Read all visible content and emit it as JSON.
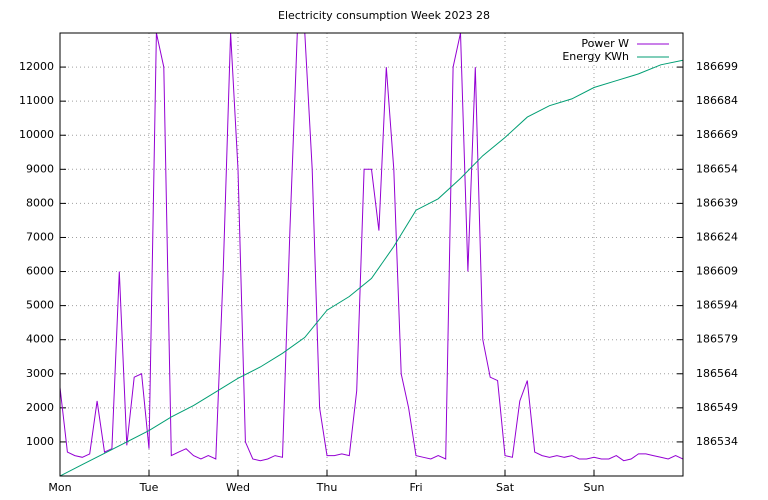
{
  "chart_data": {
    "type": "line",
    "title": "Electricity consumption Week 2023 28",
    "xlim": [
      0,
      168
    ],
    "xticks": [
      {
        "value": 0,
        "label": "Mon"
      },
      {
        "value": 24,
        "label": "Tue"
      },
      {
        "value": 48,
        "label": "Wed"
      },
      {
        "value": 72,
        "label": "Thu"
      },
      {
        "value": 96,
        "label": "Fri"
      },
      {
        "value": 120,
        "label": "Sat"
      },
      {
        "value": 144,
        "label": "Sun"
      }
    ],
    "ylim": [
      0,
      13000
    ],
    "yticks": [
      1000,
      2000,
      3000,
      4000,
      5000,
      6000,
      7000,
      8000,
      9000,
      10000,
      11000,
      12000
    ],
    "y2lim": [
      186519,
      186714
    ],
    "y2ticks": [
      186534,
      186549,
      186564,
      186579,
      186594,
      186609,
      186624,
      186639,
      186654,
      186669,
      186684,
      186699
    ],
    "grid": true,
    "legend": "top-right",
    "series": [
      {
        "name": "Power W",
        "color": "#9400d3",
        "x": [
          0,
          2,
          4,
          6,
          8,
          10,
          12,
          14,
          16,
          18,
          20,
          22,
          24,
          26,
          28,
          30,
          32,
          34,
          36,
          38,
          40,
          42,
          44,
          46,
          48,
          50,
          52,
          54,
          56,
          58,
          60,
          62,
          64,
          66,
          68,
          70,
          72,
          74,
          76,
          78,
          80,
          82,
          84,
          86,
          88,
          90,
          92,
          94,
          96,
          98,
          100,
          102,
          104,
          106,
          108,
          110,
          112,
          114,
          116,
          118,
          120,
          122,
          124,
          126,
          128,
          130,
          132,
          134,
          136,
          138,
          140,
          142,
          144,
          146,
          148,
          150,
          152,
          154,
          156,
          158,
          160,
          162,
          164,
          166,
          168
        ],
        "values": [
          2600,
          700,
          600,
          550,
          650,
          2200,
          700,
          800,
          6000,
          900,
          2900,
          3000,
          800,
          13000,
          12000,
          600,
          700,
          800,
          600,
          500,
          600,
          500,
          6000,
          13000,
          9000,
          1000,
          500,
          450,
          500,
          600,
          550,
          7200,
          13000,
          13000,
          9000,
          2000,
          600,
          600,
          650,
          600,
          2500,
          9000,
          9000,
          7200,
          12000,
          9000,
          3000,
          2000,
          600,
          550,
          500,
          600,
          500,
          12000,
          13000,
          6000,
          12000,
          4000,
          2900,
          2800,
          600,
          550,
          2200,
          2800,
          700,
          600,
          550,
          600,
          550,
          600,
          500,
          500,
          550,
          500,
          500,
          600,
          450,
          500,
          650,
          650,
          600,
          550,
          500,
          600,
          500
        ]
      },
      {
        "name": "Energy KWh",
        "color": "#009e73",
        "axis": "y2",
        "x": [
          0,
          6,
          12,
          18,
          24,
          30,
          36,
          42,
          48,
          54,
          60,
          66,
          72,
          78,
          84,
          90,
          96,
          102,
          108,
          114,
          120,
          126,
          132,
          138,
          144,
          150,
          156,
          162,
          168
        ],
        "values": [
          186519,
          186524,
          186529,
          186534,
          186539,
          186545,
          186550,
          186556,
          186562,
          186567,
          186573,
          186580,
          186592,
          186598,
          186606,
          186620,
          186636,
          186641,
          186650,
          186660,
          186668,
          186677,
          186682,
          186685,
          186690,
          186693,
          186696,
          186700,
          186702
        ]
      }
    ]
  }
}
